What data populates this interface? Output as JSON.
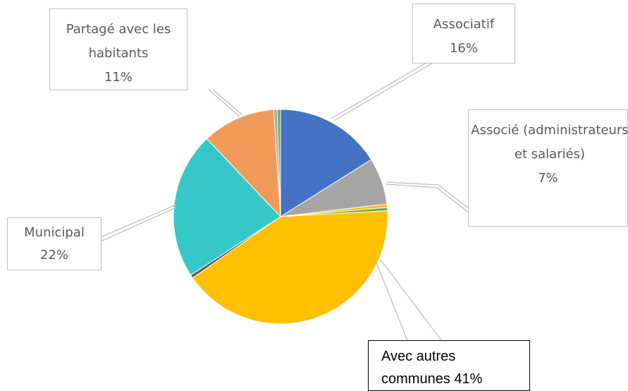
{
  "chart_data": {
    "type": "pie",
    "categories": [
      "Associatif",
      "Associé (administrateurs et salariés)",
      null,
      null,
      "Avec autres communes",
      null,
      "Municipal",
      "Partagé avec les habitants",
      null,
      null
    ],
    "values": [
      16,
      7,
      0.5,
      0.5,
      41,
      0.5,
      22,
      11,
      0.5,
      0.5
    ],
    "value_labels": [
      "16%",
      "7%",
      null,
      null,
      "41%",
      null,
      "22%",
      "11%",
      null,
      null
    ],
    "colors": [
      "#4472c4",
      "#a5a5a5",
      "#ffc000",
      "#70ad47",
      "#ffc000",
      "#5a5a5a",
      "#36c8c8",
      "#f09a5a",
      "#a5a5a5",
      "#70ad47"
    ]
  }
}
